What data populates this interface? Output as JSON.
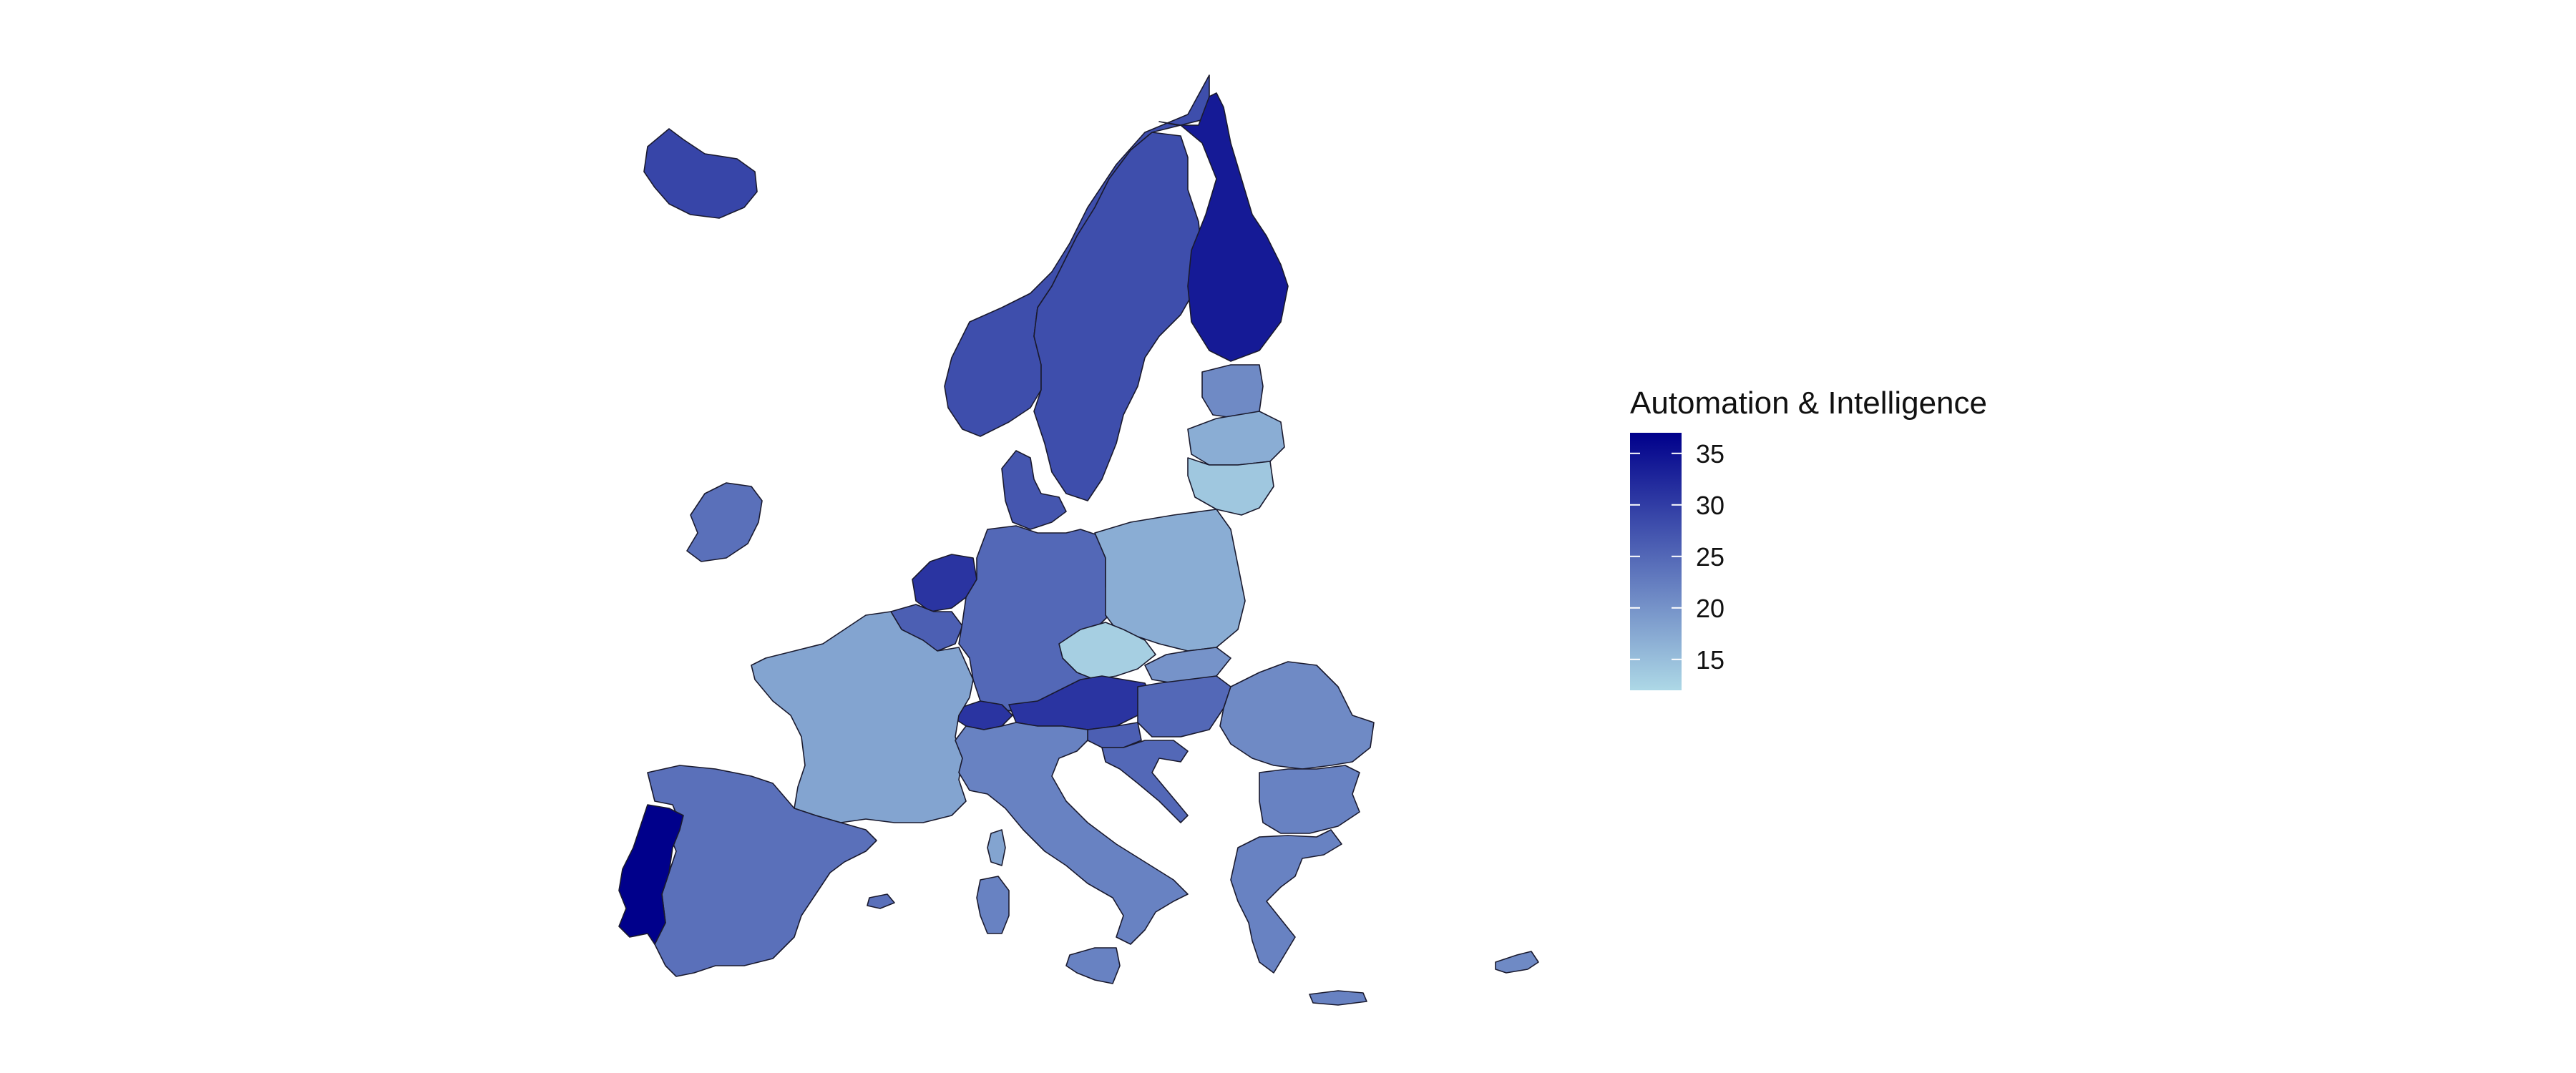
{
  "legend": {
    "title": "Automation & Intelligence",
    "min": 12,
    "max": 37,
    "ticks": [
      15,
      20,
      25,
      30,
      35
    ],
    "color_low": "#add8e6",
    "color_high": "#00008b"
  },
  "chart_data": {
    "type": "choropleth",
    "region": "Europe",
    "color_scale": {
      "low": "#add8e6",
      "high": "#00008b",
      "min": 12,
      "max": 37
    },
    "values": {
      "Portugal": 37,
      "Finland": 34,
      "Netherlands": 31,
      "Austria": 31,
      "Switzerland": 31,
      "Iceland": 29,
      "Sweden": 28,
      "Norway": 28,
      "Denmark": 27,
      "Belgium": 26,
      "Slovenia": 26,
      "Croatia": 25,
      "Hungary": 25,
      "Germany": 25,
      "Spain": 24,
      "Ireland": 24,
      "Italy": 22,
      "Greece": 22,
      "Bulgaria": 22,
      "Cyprus": 21,
      "Romania": 21,
      "Estonia": 21,
      "Slovakia": 20,
      "France": 18,
      "Poland": 17,
      "Latvia": 17,
      "Lithuania": 14,
      "Czechia": 13
    }
  }
}
